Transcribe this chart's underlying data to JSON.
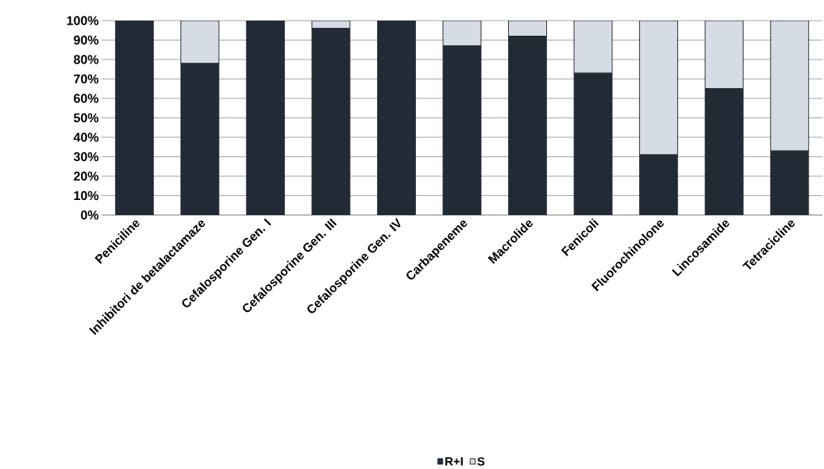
{
  "chart_data": {
    "type": "bar",
    "stacked": true,
    "categories": [
      "Peniciline",
      "Inhibitori de betalactamaze",
      "Cefalosporine Gen. I",
      "Cefalosporine Gen. III",
      "Cefalosporine Gen. IV",
      "Carbapeneme",
      "Macrolide",
      "Fenicoli",
      "Fluorochinolone",
      "Lincosamide",
      "Tetracicline"
    ],
    "series": [
      {
        "name": "R+I",
        "color": "#222a35",
        "values": [
          100,
          78,
          100,
          96,
          100,
          87,
          92,
          73,
          31,
          65,
          33
        ]
      },
      {
        "name": "S",
        "color": "#d6dce5",
        "values": [
          0,
          22,
          0,
          4,
          0,
          13,
          8,
          27,
          69,
          35,
          67
        ]
      }
    ],
    "ylim": [
      0,
      100
    ],
    "yticks": [
      {
        "value": 0,
        "label": "0%"
      },
      {
        "value": 10,
        "label": "10%"
      },
      {
        "value": 20,
        "label": "20%"
      },
      {
        "value": 30,
        "label": "30%"
      },
      {
        "value": 40,
        "label": "40%"
      },
      {
        "value": 50,
        "label": "50%"
      },
      {
        "value": 60,
        "label": "60%"
      },
      {
        "value": 70,
        "label": "70%"
      },
      {
        "value": 80,
        "label": "80%"
      },
      {
        "value": 90,
        "label": "90%"
      },
      {
        "value": 100,
        "label": "100%"
      }
    ],
    "grid": "y",
    "legend": "bottom"
  }
}
